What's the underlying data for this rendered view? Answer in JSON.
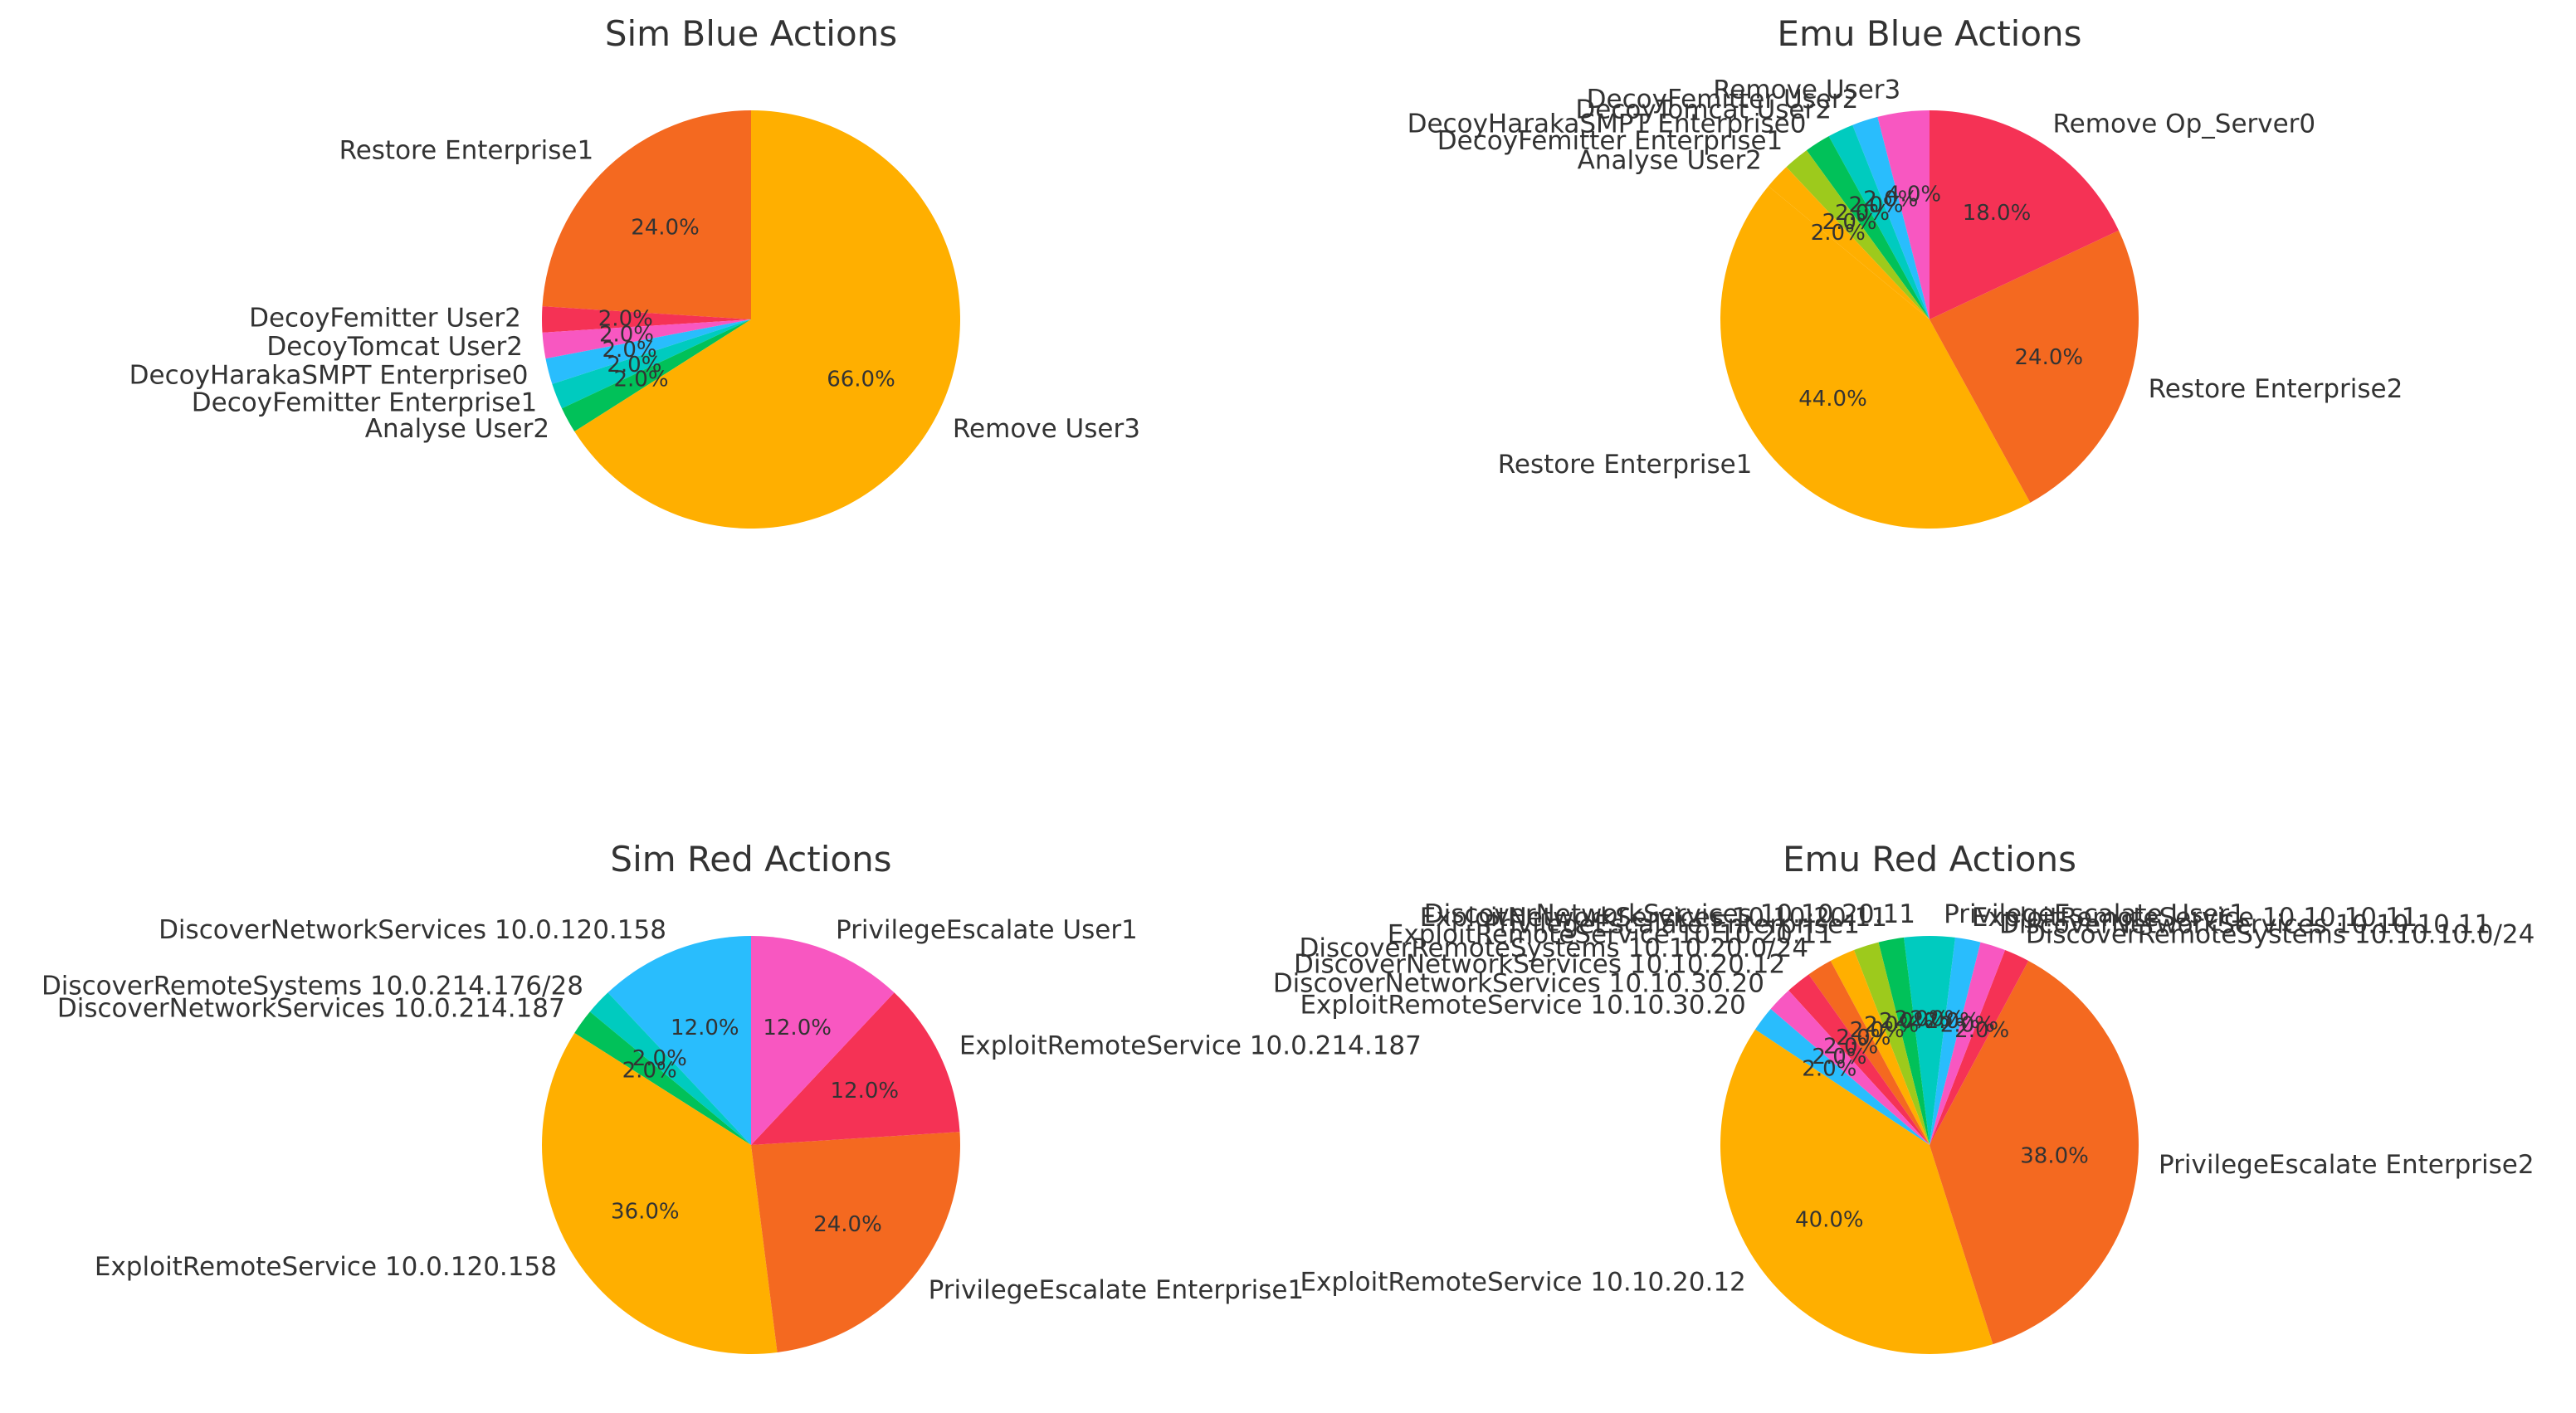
{
  "figure": {
    "colors": [
      "#ffaf00",
      "#f46920",
      "#f53255",
      "#f857c1",
      "#29bdfd",
      "#00cbbf",
      "#01c159",
      "#9dca1c"
    ]
  },
  "chart_data": [
    {
      "type": "pie",
      "title": "Sim Blue Actions",
      "start_angle": 90,
      "direction": "counterclockwise",
      "slices": [
        {
          "label": "Restore Enterprise1",
          "value": 24.0,
          "pct": "24.0%",
          "color": "#f46920"
        },
        {
          "label": "DecoyFemitter User2",
          "value": 2.0,
          "pct": "2.0%",
          "color": "#f53255"
        },
        {
          "label": "DecoyTomcat User2",
          "value": 2.0,
          "pct": "2.0%",
          "color": "#f857c1"
        },
        {
          "label": "DecoyHarakaSMPT Enterprise0",
          "value": 2.0,
          "pct": "2.0%",
          "color": "#29bdfd"
        },
        {
          "label": "DecoyFemitter Enterprise1",
          "value": 2.0,
          "pct": "2.0%",
          "color": "#00cbbf"
        },
        {
          "label": "Analyse User2",
          "value": 2.0,
          "pct": "2.0%",
          "color": "#01c159"
        },
        {
          "label": "Remove User3",
          "value": 66.0,
          "pct": "66.0%",
          "color": "#ffaf00"
        }
      ]
    },
    {
      "type": "pie",
      "title": "Emu Blue Actions",
      "start_angle": 90,
      "direction": "counterclockwise",
      "slices": [
        {
          "label": "Remove User3",
          "value": 4.0,
          "pct": "4.0%",
          "color": "#f857c1"
        },
        {
          "label": "DecoyFemitter User2",
          "value": 2.0,
          "pct": "2.0%",
          "color": "#29bdfd"
        },
        {
          "label": "DecoyTomcat User2",
          "value": 2.0,
          "pct": "2.0%",
          "color": "#00cbbf"
        },
        {
          "label": "DecoyHarakaSMPT Enterprise0",
          "value": 2.0,
          "pct": "2.0%",
          "color": "#01c159"
        },
        {
          "label": "DecoyFemitter Enterprise1",
          "value": 2.0,
          "pct": "2.0%",
          "color": "#9dca1c"
        },
        {
          "label": "Analyse User2",
          "value": 2.0,
          "pct": "2.0%",
          "color": "#ffaf00"
        },
        {
          "label": "Restore Enterprise1",
          "value": 44.0,
          "pct": "44.0%",
          "color": "#ffaf00"
        },
        {
          "label": "Restore Enterprise2",
          "value": 24.0,
          "pct": "24.0%",
          "color": "#f46920"
        },
        {
          "label": "Remove Op_Server0",
          "value": 18.0,
          "pct": "18.0%",
          "color": "#f53255"
        }
      ]
    },
    {
      "type": "pie",
      "title": "Sim Red Actions",
      "start_angle": 90,
      "direction": "counterclockwise",
      "slices": [
        {
          "label": "DiscoverNetworkServices 10.0.120.158",
          "value": 12.0,
          "pct": "12.0%",
          "color": "#29bdfd"
        },
        {
          "label": "DiscoverRemoteSystems 10.0.214.176/28",
          "value": 2.0,
          "pct": "2.0%",
          "color": "#00cbbf"
        },
        {
          "label": "DiscoverNetworkServices 10.0.214.187",
          "value": 2.0,
          "pct": "2.0%",
          "color": "#01c159"
        },
        {
          "label": "ExploitRemoteService 10.0.120.158",
          "value": 36.0,
          "pct": "36.0%",
          "color": "#ffaf00"
        },
        {
          "label": "PrivilegeEscalate Enterprise1",
          "value": 24.0,
          "pct": "24.0%",
          "color": "#f46920"
        },
        {
          "label": "ExploitRemoteService 10.0.214.187",
          "value": 12.0,
          "pct": "12.0%",
          "color": "#f53255"
        },
        {
          "label": "PrivilegeEscalate User1",
          "value": 12.0,
          "pct": "12.0%",
          "color": "#f857c1"
        }
      ]
    },
    {
      "type": "pie",
      "title": "Emu Red Actions",
      "start_angle": 90,
      "direction": "counterclockwise",
      "slices": [
        {
          "label": "DiscoverNetworkServices 10.10.20.11",
          "value": 2.0,
          "pct": "2.0%",
          "color": "#00cbbf"
        },
        {
          "label": "ExploitNetworkServices 10.10.20.11",
          "value": 2.0,
          "pct": "2.0%",
          "color": "#01c159"
        },
        {
          "label": "PrivilegeEscalate Enterprise1",
          "value": 2.0,
          "pct": "2.0%",
          "color": "#9dca1c"
        },
        {
          "label": "ExploitRemoteService 10.10.20.11",
          "value": 2.0,
          "pct": "2.0%",
          "color": "#ffaf00"
        },
        {
          "label": "DiscoverRemoteSystems 10.10.20.0/24",
          "value": 2.0,
          "pct": "2.0%",
          "color": "#f46920"
        },
        {
          "label": "DiscoverNetworkServices 10.10.20.12",
          "value": 2.0,
          "pct": "2.0%",
          "color": "#f53255"
        },
        {
          "label": "DiscoverNetworkServices 10.10.30.20",
          "value": 2.0,
          "pct": "2.0%",
          "color": "#f857c1"
        },
        {
          "label": "ExploitRemoteService 10.10.30.20",
          "value": 2.0,
          "pct": "2.0%",
          "color": "#29bdfd"
        },
        {
          "label": "ExploitRemoteService 10.10.20.12",
          "value": 40.0,
          "pct": "40.0%",
          "color": "#ffaf00"
        },
        {
          "label": "PrivilegeEscalate Enterprise2",
          "value": 38.0,
          "pct": "38.0%",
          "color": "#f46920"
        },
        {
          "label": "DiscoverRemoteSystems 10.10.10.0/24",
          "value": 2.0,
          "pct": "2.0%",
          "color": "#f53255"
        },
        {
          "label": "DiscoverNetworkServices 10.10.10.11",
          "value": 2.0,
          "pct": "2.0%",
          "color": "#f857c1"
        },
        {
          "label": "ExploitRemoteService 10.10.10.11",
          "value": 2.0,
          "pct": "2.0%",
          "color": "#29bdfd"
        },
        {
          "label": "PrivilegeEscalate User1",
          "value": 2.0,
          "pct": "2.0%",
          "color": "#00cbbf"
        }
      ]
    }
  ]
}
